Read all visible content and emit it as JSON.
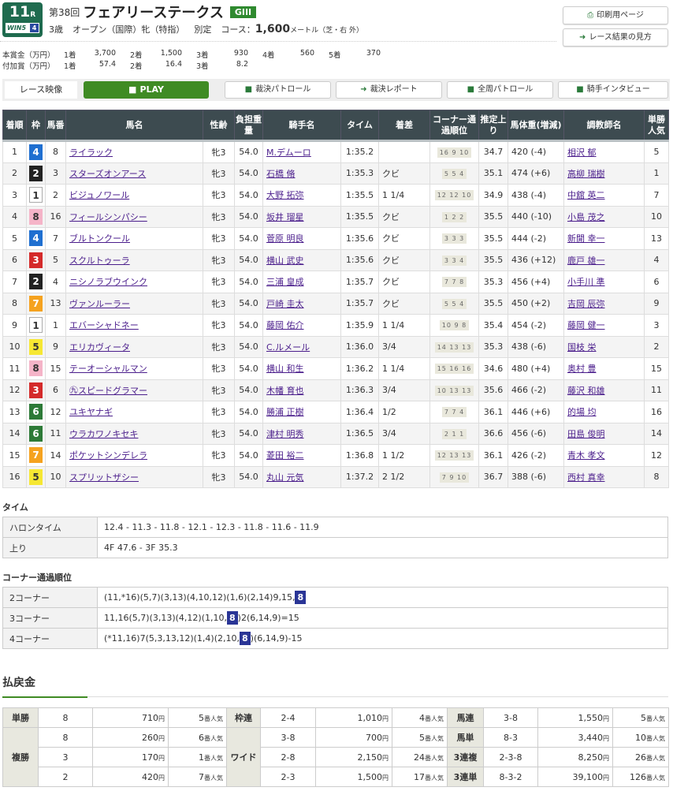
{
  "race": {
    "number": "11",
    "r_suffix": "R",
    "win5_label": "WIN5",
    "win5_leg": "4",
    "kai": "第38回",
    "name": "フェアリーステークス",
    "grade": "GIII",
    "age": "3歳",
    "class": "オープン（国際）牝（特指）",
    "weight_rule": "別定",
    "course_label": "コース：",
    "distance": "1,600",
    "dist_unit": "メートル（芝・右 外）"
  },
  "buttons": {
    "print": "印刷用ページ",
    "howto": "レース結果の見方"
  },
  "prize": {
    "main_label": "本賞金（万円）",
    "main": [
      [
        "1着",
        "3,700"
      ],
      [
        "2着",
        "1,500"
      ],
      [
        "3着",
        "930"
      ],
      [
        "4着",
        "560"
      ],
      [
        "5着",
        "370"
      ]
    ],
    "add_label": "付加賞（万円）",
    "add": [
      [
        "1着",
        "57.4"
      ],
      [
        "2着",
        "16.4"
      ],
      [
        "3着",
        "8.2"
      ]
    ]
  },
  "video": {
    "label": "レース映像",
    "play": "PLAY",
    "buttons": [
      "裁決パトロール",
      "裁決レポート",
      "全周パトロール",
      "騎手インタビュー"
    ]
  },
  "table": {
    "headers": [
      "着順",
      "枠",
      "馬番",
      "馬名",
      "性齢",
      "負担重量",
      "騎手名",
      "タイム",
      "着差",
      "コーナー通過順位",
      "推定上り",
      "馬体重(増減)",
      "調教師名",
      "単勝人気"
    ],
    "rows": [
      [
        "1",
        "4",
        "8",
        "ライラック",
        "牝3",
        "54.0",
        "M.デムーロ",
        "1:35.2",
        "",
        "16 9 10",
        "34.7",
        "420 (-4)",
        "相沢 郁",
        "5"
      ],
      [
        "2",
        "2",
        "3",
        "スターズオンアース",
        "牝3",
        "54.0",
        "石橋 脩",
        "1:35.3",
        "クビ",
        "5 5 4",
        "35.1",
        "474 (+6)",
        "高柳 瑞樹",
        "1"
      ],
      [
        "3",
        "1",
        "2",
        "ビジュノワール",
        "牝3",
        "54.0",
        "大野 拓弥",
        "1:35.5",
        "1 1/4",
        "12 12 10",
        "34.9",
        "438 (-4)",
        "中舘 英二",
        "7"
      ],
      [
        "4",
        "8",
        "16",
        "フィールシンパシー",
        "牝3",
        "54.0",
        "坂井 瑠星",
        "1:35.5",
        "クビ",
        "1 2 2",
        "35.5",
        "440 (-10)",
        "小島 茂之",
        "10"
      ],
      [
        "5",
        "4",
        "7",
        "ブルトンクール",
        "牝3",
        "54.0",
        "菅原 明良",
        "1:35.6",
        "クビ",
        "3 3 3",
        "35.5",
        "444 (-2)",
        "新開 幸一",
        "13"
      ],
      [
        "6",
        "3",
        "5",
        "スクルトゥーラ",
        "牝3",
        "54.0",
        "横山 武史",
        "1:35.6",
        "クビ",
        "3 3 4",
        "35.5",
        "436 (+12)",
        "鹿戸 雄一",
        "4"
      ],
      [
        "7",
        "2",
        "4",
        "ニシノラブウインク",
        "牝3",
        "54.0",
        "三浦 皇成",
        "1:35.7",
        "クビ",
        "7 7 8",
        "35.3",
        "456 (+4)",
        "小手川 準",
        "6"
      ],
      [
        "8",
        "7",
        "13",
        "ヴァンルーラー",
        "牝3",
        "54.0",
        "戸崎 圭太",
        "1:35.7",
        "クビ",
        "5 5 4",
        "35.5",
        "450 (+2)",
        "吉岡 辰弥",
        "9"
      ],
      [
        "9",
        "1",
        "1",
        "エバーシャドネー",
        "牝3",
        "54.0",
        "藤岡 佑介",
        "1:35.9",
        "1 1/4",
        "10 9 8",
        "35.4",
        "454 (-2)",
        "藤岡 健一",
        "3"
      ],
      [
        "10",
        "5",
        "9",
        "エリカヴィータ",
        "牝3",
        "54.0",
        "C.ルメール",
        "1:36.0",
        "3/4",
        "14 13 13",
        "35.3",
        "438 (-6)",
        "国枝 栄",
        "2"
      ],
      [
        "11",
        "8",
        "15",
        "テーオーシャルマン",
        "牝3",
        "54.0",
        "横山 和生",
        "1:36.2",
        "1 1/4",
        "15 16 16",
        "34.6",
        "480 (+4)",
        "奥村 豊",
        "15"
      ],
      [
        "12",
        "3",
        "6",
        "㊈スピードグラマー",
        "牝3",
        "54.0",
        "木幡 育也",
        "1:36.3",
        "3/4",
        "10 13 13",
        "35.6",
        "466 (-2)",
        "藤沢 和雄",
        "11"
      ],
      [
        "13",
        "6",
        "12",
        "ユキヤナギ",
        "牝3",
        "54.0",
        "勝浦 正樹",
        "1:36.4",
        "1/2",
        "7 7 4",
        "36.1",
        "446 (+6)",
        "的場 均",
        "16"
      ],
      [
        "14",
        "6",
        "11",
        "ウラカワノキセキ",
        "牝3",
        "54.0",
        "津村 明秀",
        "1:36.5",
        "3/4",
        "2 1 1",
        "36.6",
        "456 (-6)",
        "田島 俊明",
        "14"
      ],
      [
        "15",
        "7",
        "14",
        "ポケットシンデレラ",
        "牝3",
        "54.0",
        "菱田 裕二",
        "1:36.8",
        "1 1/2",
        "12 13 13",
        "36.1",
        "426 (-2)",
        "青木 孝文",
        "12"
      ],
      [
        "16",
        "5",
        "10",
        "スプリットザシー",
        "牝3",
        "54.0",
        "丸山 元気",
        "1:37.2",
        "2 1/2",
        "7 9 10",
        "36.7",
        "388 (-6)",
        "西村 真幸",
        "8"
      ]
    ]
  },
  "waku_colors": {
    "1": "#ffffff",
    "2": "#222222",
    "3": "#d42a2a",
    "4": "#1f6fd0",
    "5": "#f6e733",
    "6": "#2d7a37",
    "7": "#f5a21f",
    "8": "#f5b4c8"
  },
  "time": {
    "title": "タイム",
    "furlong_label": "ハロンタイム",
    "furlong": "12.4 - 11.3 - 11.8 - 12.1 - 12.3 - 11.8 - 11.6 - 11.9",
    "agari_label": "上り",
    "agari": "4F 47.6 - 3F 35.3"
  },
  "corners": {
    "title": "コーナー通過順位",
    "rows": [
      {
        "label": "2コーナー",
        "before": "(11,*16)(5,7)(3,13)(4,10,12)(1,6)(2,14)9,15,",
        "hl": "8",
        "after": ""
      },
      {
        "label": "3コーナー",
        "before": "11,16(5,7)(3,13)(4,12)(1,10,",
        "hl": "8",
        "after": ")2(6,14,9)=15"
      },
      {
        "label": "4コーナー",
        "before": "(*11,16)7(5,3,13,12)(1,4)(2,10,",
        "hl": "8",
        "after": ")(6,14,9)-15"
      }
    ]
  },
  "payout": {
    "title": "払戻金",
    "yen": "円",
    "pop_suffix": "番人気",
    "tansho": {
      "label": "単勝",
      "rows": [
        [
          "8",
          "710",
          "5"
        ]
      ]
    },
    "fukusho": {
      "label": "複勝",
      "rows": [
        [
          "8",
          "260",
          "6"
        ],
        [
          "3",
          "170",
          "1"
        ],
        [
          "2",
          "420",
          "7"
        ]
      ]
    },
    "wakuren": {
      "label": "枠連",
      "rows": [
        [
          "2-4",
          "1,010",
          "4"
        ]
      ]
    },
    "wide": {
      "label": "ワイド",
      "rows": [
        [
          "3-8",
          "700",
          "5"
        ],
        [
          "2-8",
          "2,150",
          "24"
        ],
        [
          "2-3",
          "1,500",
          "17"
        ]
      ]
    },
    "umaren": {
      "label": "馬連",
      "rows": [
        [
          "3-8",
          "1,550",
          "5"
        ]
      ]
    },
    "umatan": {
      "label": "馬単",
      "rows": [
        [
          "8-3",
          "3,440",
          "10"
        ]
      ]
    },
    "sanrenpuku": {
      "label": "3連複",
      "rows": [
        [
          "2-3-8",
          "8,250",
          "26"
        ]
      ]
    },
    "sanrentan": {
      "label": "3連単",
      "rows": [
        [
          "8-3-2",
          "39,100",
          "126"
        ]
      ]
    }
  }
}
